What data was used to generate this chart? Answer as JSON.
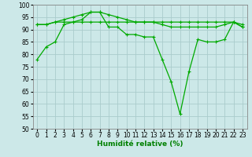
{
  "xlabel": "Humidité relative (%)",
  "xlim": [
    -0.5,
    23.5
  ],
  "ylim": [
    50,
    100
  ],
  "yticks": [
    50,
    55,
    60,
    65,
    70,
    75,
    80,
    85,
    90,
    95,
    100
  ],
  "xticks": [
    0,
    1,
    2,
    3,
    4,
    5,
    6,
    7,
    8,
    9,
    10,
    11,
    12,
    13,
    14,
    15,
    16,
    17,
    18,
    19,
    20,
    21,
    22,
    23
  ],
  "bg_color": "#cce8e8",
  "grid_color": "#aacccc",
  "line_color": "#00aa00",
  "line1_y": [
    78,
    83,
    85,
    92,
    93,
    94,
    97,
    97,
    91,
    91,
    88,
    88,
    87,
    87,
    78,
    69,
    56,
    73,
    86,
    85,
    85,
    86,
    93,
    91
  ],
  "line2_y": [
    92,
    92,
    93,
    93,
    93,
    93,
    93,
    93,
    93,
    93,
    93,
    93,
    93,
    93,
    93,
    93,
    93,
    93,
    93,
    93,
    93,
    93,
    93,
    92
  ],
  "line3_y": [
    92,
    92,
    93,
    94,
    95,
    96,
    97,
    97,
    96,
    95,
    94,
    93,
    93,
    93,
    92,
    91,
    91,
    91,
    91,
    91,
    91,
    92,
    93,
    91
  ],
  "figsize": [
    3.2,
    2.0
  ],
  "dpi": 100
}
